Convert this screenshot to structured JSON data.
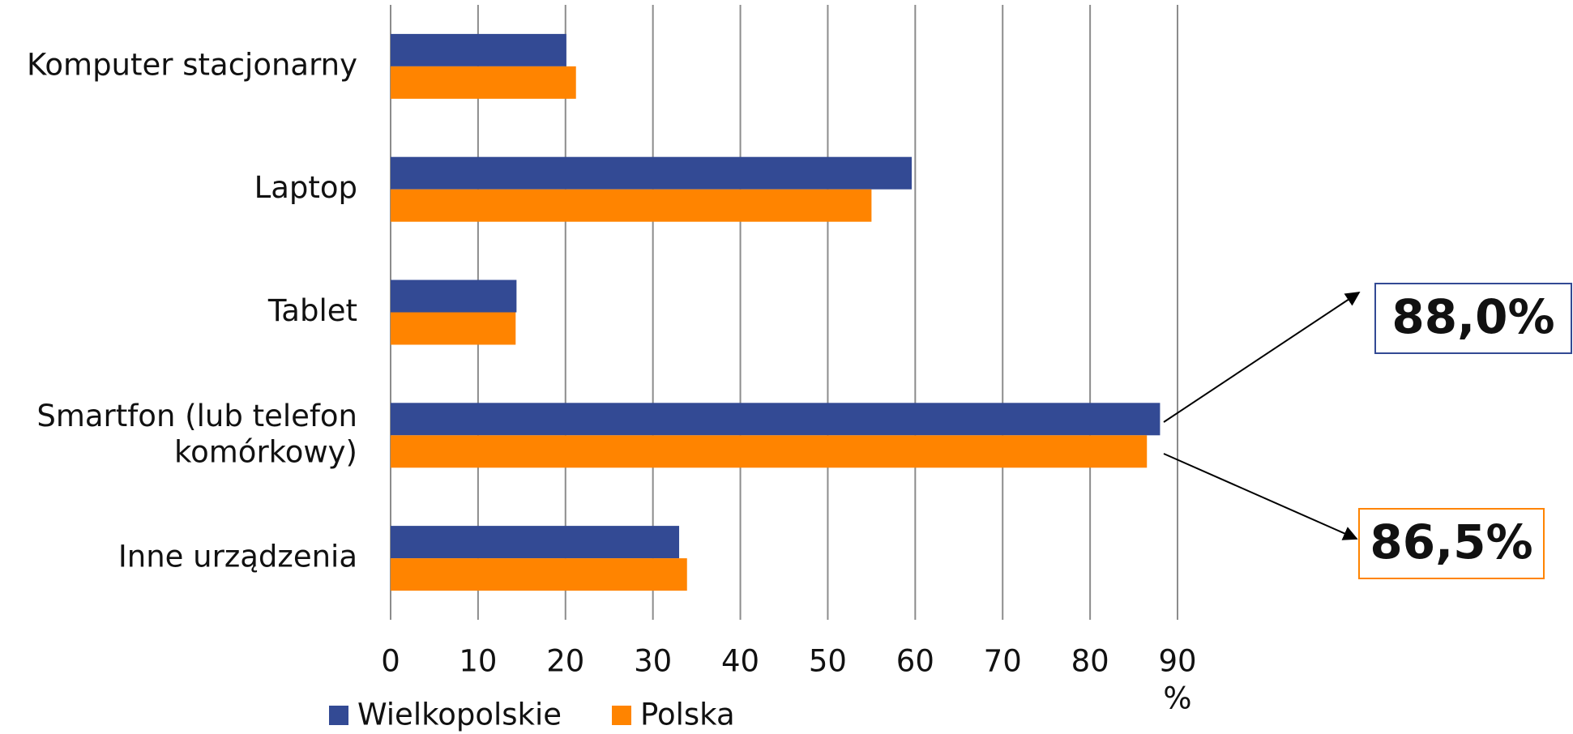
{
  "chart_data": {
    "type": "barh",
    "categories": [
      "Komputer stacjonarny",
      "Laptop",
      "Tablet",
      "Smartfon (lub telefon\nkomórkowy)",
      "Inne urządzenia"
    ],
    "series": [
      {
        "name": "Wielkopolskie",
        "color": "#334a94",
        "values": [
          20.1,
          59.6,
          14.4,
          88.0,
          33.0
        ],
        "value_labels": [
          null,
          null,
          null,
          "88,0%",
          null
        ]
      },
      {
        "name": "Polska",
        "color": "#ff8400",
        "values": [
          21.2,
          55.0,
          14.3,
          86.5,
          33.9
        ],
        "value_labels": [
          null,
          null,
          null,
          "86,5%",
          null
        ]
      }
    ],
    "xlim": [
      0,
      90
    ],
    "xticks": [
      0,
      10,
      20,
      30,
      40,
      50,
      60,
      70,
      80,
      90
    ],
    "xlabel": "%",
    "grid": true,
    "legend": "bottom"
  }
}
